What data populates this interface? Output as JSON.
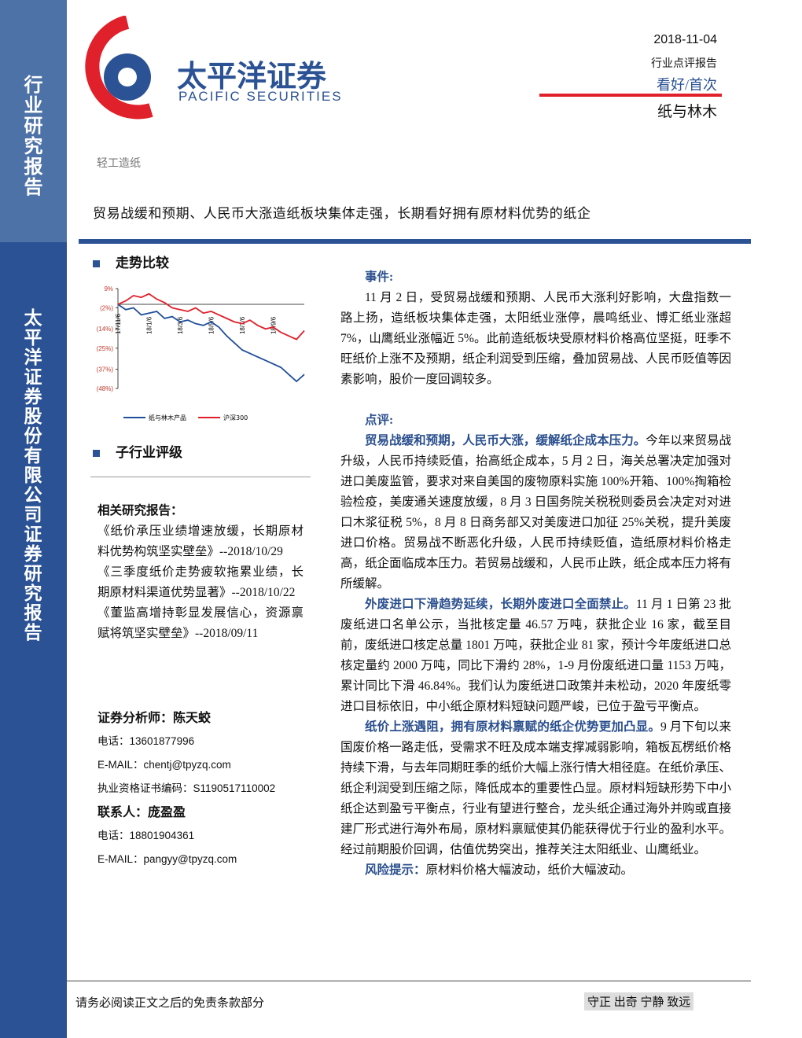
{
  "header": {
    "company_cn": "太平洋证券",
    "company_en": "PACIFIC SECURITIES",
    "date": "2018-11-04",
    "report_type": "行业点评报告",
    "rating": "看好/首次",
    "industry": "纸与林木"
  },
  "sidebar": {
    "top": "行业研究报告",
    "bottom": "太平洋证券股份有限公司证券研究报告"
  },
  "category": "轻工造纸",
  "title": "贸易战缓和预期、人民币大涨造纸板块集体走强，长期看好拥有原材料优势的纸企",
  "sections": {
    "trend": "走势比较",
    "rating": "子行业评级"
  },
  "chart_data": {
    "type": "line",
    "categories": [
      "17/11/6",
      null,
      null,
      null,
      "18/1/6",
      null,
      null,
      null,
      "18/3/6",
      null,
      null,
      null,
      "18/5/6",
      null,
      null,
      null,
      "18/7/6",
      null,
      null,
      null,
      "18/9/6",
      null,
      null,
      null,
      null
    ],
    "series": [
      {
        "name": "纸与林木产品",
        "color": "#1f4e9a",
        "values": [
          0,
          -3,
          -2,
          -6,
          -5,
          -4,
          -8,
          -7,
          -10,
          -9,
          -11,
          -12,
          -10,
          -13,
          -18,
          -22,
          -26,
          -28,
          -30,
          -32,
          -34,
          -36,
          -40,
          -44,
          -40
        ]
      },
      {
        "name": "沪深300",
        "color": "#e0202a",
        "values": [
          0,
          2,
          5,
          4,
          6,
          3,
          1,
          -2,
          -3,
          -4,
          -2,
          -5,
          -4,
          -6,
          -8,
          -10,
          -11,
          -9,
          -12,
          -14,
          -13,
          -16,
          -18,
          -20,
          -15
        ]
      }
    ],
    "ylim": [
      -48,
      9
    ],
    "yticks": [
      {
        "value": 9,
        "label": "9%"
      },
      {
        "value": -2,
        "label": "(2%)"
      },
      {
        "value": -14,
        "label": "(14%)"
      },
      {
        "value": -25,
        "label": "(25%)"
      },
      {
        "value": -37,
        "label": "(37%)"
      },
      {
        "value": -48,
        "label": "(48%)"
      }
    ]
  },
  "related": {
    "heading": "相关研究报告：",
    "items": [
      "《纸价承压业绩增速放缓，长期原材料优势构筑坚实壁垒》--2018/10/29",
      "《三季度纸价走势疲软拖累业绩，长期原材料渠道优势显著》--2018/10/22",
      "《董监高增持彰显发展信心，资源禀赋将筑坚实壁垒》--2018/09/11"
    ]
  },
  "contacts": [
    "证券分析师：陈天蛟",
    "电话：13601877996",
    "E-MAIL：chentj@tpyzq.com",
    "执业资格证书编码：S1190517110002",
    "联系人：庞盈盈",
    "电话：18801904361",
    "E-MAIL：pangyy@tpyzq.com"
  ],
  "event": {
    "heading": "事件:",
    "text": "11 月 2 日，受贸易战缓和预期、人民币大涨利好影响，大盘指数一路上扬，造纸板块集体走强，太阳纸业涨停，晨鸣纸业、博汇纸业涨超 7%，山鹰纸业涨幅近 5%。此前造纸板块受原材料价格高位坚挺，旺季不旺纸价上涨不及预期，纸企利润受到压缩，叠加贸易战、人民币贬值等因素影响，股价一度回调较多。"
  },
  "comment": {
    "heading": "点评:",
    "paragraphs": [
      {
        "lead": "贸易战缓和预期，人民币大涨，缓解纸企成本压力。",
        "text": "今年以来贸易战升级，人民币持续贬值，抬高纸企成本，5 月 2 日，海关总署决定加强对进口美废监管，要求对来自美国的废物原料实施 100%开箱、100%掏箱检验检疫，美废通关速度放缓，8 月 3 日国务院关税税则委员会决定对对进口木浆征税 5%，8 月 8 日商务部又对美废进口加征 25%关税，提升美废进口价格。贸易战不断恶化升级，人民币持续贬值，造纸原材料价格走高，纸企面临成本压力。若贸易战缓和，人民币止跌，纸企成本压力将有所缓解。"
      },
      {
        "lead": "外废进口下滑趋势延续，长期外废进口全面禁止。",
        "text": "11 月 1 日第 23 批废纸进口名单公示，当批核定量 46.57 万吨，获批企业 16 家，截至目前，废纸进口核定总量 1801 万吨，获批企业 81 家，预计今年废纸进口总核定量约 2000 万吨，同比下滑约 28%，1-9 月份废纸进口量 1153 万吨，累计同比下滑 46.84%。我们认为废纸进口政策并未松动，2020 年废纸零进口目标依旧，中小纸企原材料短缺问题严峻，已位于盈亏平衡点。"
      },
      {
        "lead": "纸价上涨遇阻，拥有原材料禀赋的纸企优势更加凸显。",
        "text": "9 月下旬以来国废价格一路走低，受需求不旺及成本端支撑减弱影响，箱板瓦楞纸价格持续下滑，与去年同期旺季的纸价大幅上涨行情大相径庭。在纸价承压、纸企利润受到压缩之际，降低成本的重要性凸显。原材料短缺形势下中小纸企达到盈亏平衡点，行业有望进行整合，龙头纸企通过海外并购或直接建厂形式进行海外布局，原材料禀赋使其仍能获得优于行业的盈利水平。经过前期股价回调，估值优势突出，推荐关注太阳纸业、山鹰纸业。"
      },
      {
        "lead": "风险提示：",
        "text": "原材料价格大幅波动，纸价大幅波动。"
      }
    ]
  },
  "footer": {
    "disclaimer": "请务必阅读正文之后的免责条款部分",
    "motto": "守正 出奇 宁静 致远"
  }
}
